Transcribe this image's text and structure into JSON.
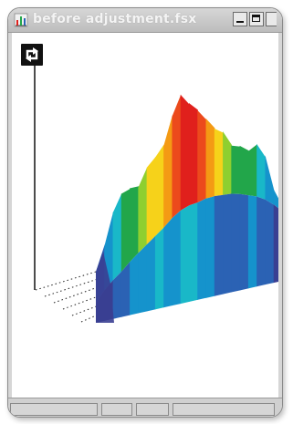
{
  "window": {
    "title": "before adjustment.fsx"
  },
  "icons": {
    "app": "spectrum-chart-icon",
    "rotate": "rotate-view-icon",
    "minimize": "minimize-icon",
    "maximize": "maximize-icon",
    "close": "close-icon"
  },
  "colors": {
    "titlebar": "#c8c8c8",
    "title_text": "#f4f4f4",
    "plot_background": "#ffffff",
    "spectrum_palette": [
      "#3a3f92",
      "#2b62b4",
      "#1593cc",
      "#19b8c8",
      "#22a64a",
      "#8ecf30",
      "#f6d21a",
      "#f49a14",
      "#ec4a1c",
      "#e0201c"
    ]
  }
}
